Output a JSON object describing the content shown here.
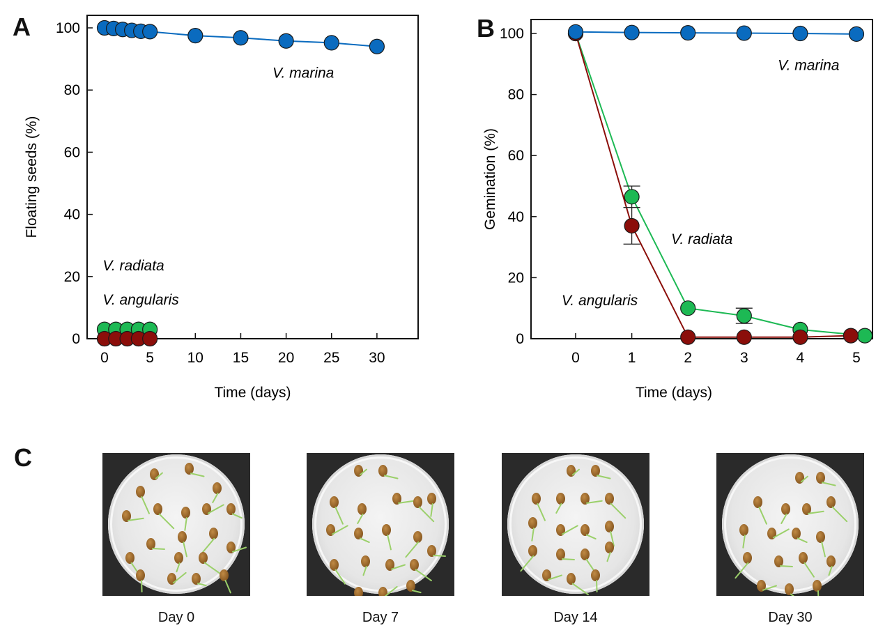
{
  "chart_data": [
    {
      "panel": "A",
      "type": "line",
      "xlabel": "Time (days)",
      "ylabel": "Floating seeds (%)",
      "xlim": [
        -2,
        34
      ],
      "ylim": [
        0,
        104
      ],
      "xticks": [
        0,
        5,
        10,
        15,
        20,
        25,
        30
      ],
      "yticks": [
        0,
        20,
        40,
        60,
        80,
        100
      ],
      "grid": false,
      "series": [
        {
          "name": "V. marina",
          "color": "#0a6bbf",
          "line": true,
          "x": [
            0,
            1,
            2,
            3,
            4,
            5,
            10,
            15,
            20,
            25,
            30
          ],
          "y": [
            100,
            99.8,
            99.5,
            99.2,
            98.9,
            98.8,
            97.5,
            96.8,
            95.8,
            95.2,
            94
          ]
        },
        {
          "name": "V. radiata",
          "color": "#1db954",
          "line": false,
          "x": [
            0,
            1.25,
            2.5,
            3.75,
            5
          ],
          "y": [
            3,
            3,
            3,
            3,
            3
          ]
        },
        {
          "name": "V. angularis",
          "color": "#8b0e0a",
          "line": false,
          "x": [
            0,
            1.25,
            2.5,
            3.75,
            5
          ],
          "y": [
            0,
            0,
            0,
            0,
            0
          ]
        }
      ],
      "annotations": [
        {
          "text": "V. marina",
          "x": 18.5,
          "y": 84
        },
        {
          "text": "V. radiata",
          "x": -0.2,
          "y": 22
        },
        {
          "text": "V. angularis",
          "x": -0.2,
          "y": 11
        }
      ]
    },
    {
      "panel": "B",
      "type": "line",
      "xlabel": "Time (days)",
      "ylabel": "Gemination (%)",
      "xlim": [
        -0.8,
        5.3
      ],
      "ylim": [
        0,
        104
      ],
      "xticks": [
        0,
        1,
        2,
        3,
        4,
        5
      ],
      "yticks": [
        0,
        20,
        40,
        60,
        80,
        100
      ],
      "grid": false,
      "series": [
        {
          "name": "V. marina",
          "color": "#0a6bbf",
          "x": [
            0,
            1,
            2,
            3,
            4,
            5
          ],
          "y": [
            100.5,
            100.3,
            100.2,
            100.1,
            100.0,
            99.8
          ],
          "err": [
            0,
            0,
            0,
            0,
            0,
            0
          ]
        },
        {
          "name": "V. radiata",
          "color": "#1db954",
          "x": [
            0,
            1,
            2,
            3,
            4,
            5.15
          ],
          "y": [
            100,
            46.5,
            10,
            7.5,
            3,
            1
          ],
          "err": [
            0,
            3.5,
            0,
            2.5,
            0,
            0
          ]
        },
        {
          "name": "V. angularis",
          "color": "#8b0e0a",
          "x": [
            0,
            1,
            2,
            3,
            4,
            4.9
          ],
          "y": [
            100,
            37,
            0.5,
            0.5,
            0.5,
            1
          ],
          "err": [
            0,
            6,
            0,
            0,
            0,
            0
          ]
        }
      ],
      "annotations": [
        {
          "text": "V. marina",
          "x": 3.6,
          "y": 88
        },
        {
          "text": "V. radiata",
          "x": 1.7,
          "y": 31
        },
        {
          "text": "V. angularis",
          "x": -0.25,
          "y": 11
        }
      ]
    }
  ],
  "panels": {
    "a_letter": "A",
    "b_letter": "B",
    "c_letter": "C"
  },
  "photos": [
    {
      "label": "Day 0"
    },
    {
      "label": "Day 7"
    },
    {
      "label": "Day 14"
    },
    {
      "label": "Day 30"
    }
  ]
}
